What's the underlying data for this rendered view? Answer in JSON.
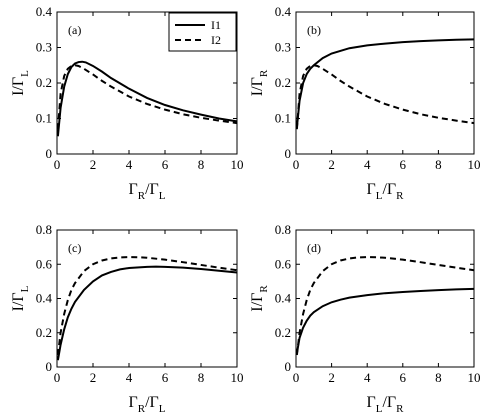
{
  "chart_data": [
    {
      "id": "a",
      "type": "line",
      "panel_label": "(a)",
      "xlabel_main": "Γ",
      "xlabel_sub": "R",
      "xlabel_mid": "/Γ",
      "xlabel_sub2": "L",
      "ylabel_main": "I/Γ",
      "ylabel_sub": "L",
      "xlim": [
        0,
        10
      ],
      "ylim": [
        0,
        0.4
      ],
      "xticks": [
        "0",
        "2",
        "4",
        "6",
        "8",
        "10"
      ],
      "yticks": [
        "0",
        "0.1",
        "0.2",
        "0.3",
        "0.4"
      ],
      "legend": {
        "position": "top-right",
        "entries": [
          "I1",
          "I2"
        ]
      },
      "series": [
        {
          "name": "I1",
          "style": "solid",
          "x": [
            0.05,
            0.2,
            0.4,
            0.6,
            0.8,
            1.0,
            1.2,
            1.4,
            1.6,
            2.0,
            2.5,
            3,
            4,
            5,
            6,
            7,
            8,
            9,
            10
          ],
          "y": [
            0.05,
            0.13,
            0.19,
            0.225,
            0.245,
            0.255,
            0.259,
            0.26,
            0.258,
            0.248,
            0.232,
            0.214,
            0.184,
            0.158,
            0.138,
            0.123,
            0.111,
            0.1,
            0.092
          ]
        },
        {
          "name": "I2",
          "style": "dashed",
          "x": [
            0.05,
            0.2,
            0.4,
            0.6,
            0.8,
            1.0,
            1.2,
            1.5,
            2,
            2.5,
            3,
            4,
            5,
            6,
            7,
            8,
            9,
            10
          ],
          "y": [
            0.07,
            0.17,
            0.22,
            0.24,
            0.248,
            0.25,
            0.248,
            0.24,
            0.224,
            0.206,
            0.19,
            0.162,
            0.141,
            0.125,
            0.112,
            0.102,
            0.094,
            0.087
          ]
        }
      ]
    },
    {
      "id": "b",
      "type": "line",
      "panel_label": "(b)",
      "xlabel_main": "Γ",
      "xlabel_sub": "L",
      "xlabel_mid": "/Γ",
      "xlabel_sub2": "R",
      "ylabel_main": "I/Γ",
      "ylabel_sub": "R",
      "xlim": [
        0,
        10
      ],
      "ylim": [
        0,
        0.4
      ],
      "xticks": [
        "0",
        "2",
        "4",
        "6",
        "8",
        "10"
      ],
      "yticks": [
        "0",
        "0.1",
        "0.2",
        "0.3",
        "0.4"
      ],
      "series": [
        {
          "name": "I1",
          "style": "solid",
          "x": [
            0.05,
            0.2,
            0.4,
            0.6,
            0.8,
            1.0,
            1.5,
            2,
            3,
            4,
            5,
            6,
            7,
            8,
            9,
            10
          ],
          "y": [
            0.075,
            0.15,
            0.2,
            0.225,
            0.24,
            0.25,
            0.27,
            0.283,
            0.298,
            0.306,
            0.311,
            0.315,
            0.318,
            0.32,
            0.322,
            0.323
          ]
        },
        {
          "name": "I2",
          "style": "dashed",
          "x": [
            0.05,
            0.2,
            0.4,
            0.6,
            0.8,
            1.0,
            1.2,
            1.5,
            2,
            2.5,
            3,
            4,
            5,
            6,
            7,
            8,
            9,
            10
          ],
          "y": [
            0.07,
            0.17,
            0.22,
            0.24,
            0.248,
            0.25,
            0.248,
            0.24,
            0.224,
            0.206,
            0.19,
            0.162,
            0.141,
            0.125,
            0.112,
            0.102,
            0.094,
            0.087
          ]
        }
      ]
    },
    {
      "id": "c",
      "type": "line",
      "panel_label": "(c)",
      "xlabel_main": "Γ",
      "xlabel_sub": "R",
      "xlabel_mid": "/Γ",
      "xlabel_sub2": "L",
      "ylabel_main": "I/Γ",
      "ylabel_sub": "L",
      "xlim": [
        0,
        10
      ],
      "ylim": [
        0,
        0.8
      ],
      "xticks": [
        "0",
        "2",
        "4",
        "6",
        "8",
        "10"
      ],
      "yticks": [
        "0",
        "0.2",
        "0.4",
        "0.6",
        "0.8"
      ],
      "series": [
        {
          "name": "I1",
          "style": "solid",
          "x": [
            0.05,
            0.2,
            0.4,
            0.6,
            0.8,
            1.0,
            1.5,
            2,
            2.5,
            3,
            3.5,
            4,
            5,
            5.5,
            6,
            7,
            8,
            9,
            10
          ],
          "y": [
            0.04,
            0.13,
            0.22,
            0.29,
            0.34,
            0.38,
            0.45,
            0.5,
            0.535,
            0.555,
            0.57,
            0.578,
            0.585,
            0.586,
            0.585,
            0.58,
            0.572,
            0.562,
            0.552
          ]
        },
        {
          "name": "I2",
          "style": "dashed",
          "x": [
            0.05,
            0.2,
            0.4,
            0.6,
            0.8,
            1.0,
            1.5,
            2,
            2.5,
            3,
            3.5,
            4,
            4.5,
            5,
            6,
            7,
            8,
            9,
            10
          ],
          "y": [
            0.07,
            0.2,
            0.31,
            0.39,
            0.45,
            0.49,
            0.56,
            0.6,
            0.622,
            0.634,
            0.64,
            0.642,
            0.641,
            0.638,
            0.627,
            0.612,
            0.596,
            0.58,
            0.565
          ]
        }
      ]
    },
    {
      "id": "d",
      "type": "line",
      "panel_label": "(d)",
      "xlabel_main": "Γ",
      "xlabel_sub": "L",
      "xlabel_mid": "/Γ",
      "xlabel_sub2": "R",
      "ylabel_main": "I/Γ",
      "ylabel_sub": "R",
      "xlim": [
        0,
        10
      ],
      "ylim": [
        0,
        0.8
      ],
      "xticks": [
        "0",
        "2",
        "4",
        "6",
        "8",
        "10"
      ],
      "yticks": [
        "0",
        "0.2",
        "0.4",
        "0.6",
        "0.8"
      ],
      "series": [
        {
          "name": "I1",
          "style": "solid",
          "x": [
            0.05,
            0.2,
            0.4,
            0.6,
            0.8,
            1.0,
            1.5,
            2,
            2.5,
            3,
            4,
            5,
            6,
            7,
            8,
            9,
            10
          ],
          "y": [
            0.08,
            0.17,
            0.23,
            0.27,
            0.3,
            0.32,
            0.355,
            0.378,
            0.393,
            0.405,
            0.42,
            0.431,
            0.438,
            0.444,
            0.449,
            0.453,
            0.456
          ]
        },
        {
          "name": "I2",
          "style": "dashed",
          "x": [
            0.05,
            0.2,
            0.4,
            0.6,
            0.8,
            1.0,
            1.5,
            2,
            2.5,
            3,
            3.5,
            4,
            4.5,
            5,
            6,
            7,
            8,
            9,
            10
          ],
          "y": [
            0.07,
            0.2,
            0.31,
            0.39,
            0.45,
            0.49,
            0.56,
            0.6,
            0.622,
            0.634,
            0.64,
            0.642,
            0.641,
            0.638,
            0.627,
            0.612,
            0.596,
            0.58,
            0.565
          ]
        }
      ]
    }
  ]
}
